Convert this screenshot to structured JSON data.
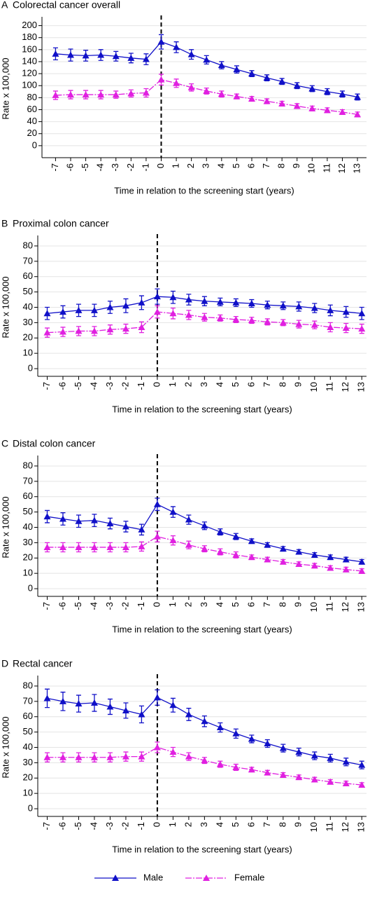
{
  "chart_data": [
    {
      "type": "line",
      "panel": "A",
      "title": "Colorectal cancer overall",
      "x_label": "Time in relation to the screening start (years)",
      "y_label": "Rate x 100,000",
      "x": [
        -7,
        -6,
        -5,
        -4,
        -3,
        -2,
        -1,
        0,
        1,
        2,
        3,
        4,
        5,
        6,
        7,
        8,
        9,
        10,
        11,
        12,
        13
      ],
      "xlim": [
        -7.9,
        13.6
      ],
      "xticks": [
        -7,
        -6,
        -5,
        -4,
        -3,
        -2,
        -1,
        0,
        1,
        2,
        3,
        4,
        5,
        6,
        7,
        8,
        9,
        10,
        11,
        12,
        13
      ],
      "ylim": [
        -20,
        210
      ],
      "yticks": [
        0,
        20,
        40,
        60,
        80,
        100,
        120,
        140,
        160,
        180,
        200
      ],
      "grid": true,
      "reference_x": 0,
      "series": [
        {
          "name": "Male",
          "color": "#1010c8",
          "values": [
            153,
            151,
            150,
            151,
            149,
            146,
            144,
            173,
            164,
            152,
            143,
            134,
            127,
            120,
            113,
            107,
            100,
            95,
            90,
            86,
            81
          ],
          "errors": [
            10,
            10,
            9,
            9,
            8,
            8,
            9,
            12,
            9,
            8,
            7,
            6,
            6,
            5,
            5,
            5,
            5,
            5,
            5,
            5,
            5
          ]
        },
        {
          "name": "Female",
          "color": "#e020e0",
          "values": [
            84,
            85,
            85,
            85,
            85,
            87,
            88,
            110,
            104,
            97,
            91,
            86,
            82,
            78,
            74,
            70,
            66,
            62,
            59,
            56,
            52
          ],
          "errors": [
            7,
            7,
            7,
            7,
            6,
            6,
            7,
            9,
            7,
            6,
            5,
            5,
            4,
            4,
            4,
            4,
            4,
            4,
            4,
            4,
            4
          ]
        }
      ]
    },
    {
      "type": "line",
      "panel": "B",
      "title": "Proximal colon cancer",
      "x_label": "Time in relation to the screening start (years)",
      "y_label": "Rate x 100,000",
      "x": [
        -7,
        -6,
        -5,
        -4,
        -3,
        -2,
        -1,
        0,
        1,
        2,
        3,
        4,
        5,
        6,
        7,
        8,
        9,
        10,
        11,
        12,
        13
      ],
      "xlim": [
        -7.6,
        13.3
      ],
      "xticks": [
        -7,
        -6,
        -5,
        -4,
        -3,
        -2,
        -1,
        0,
        1,
        2,
        3,
        4,
        5,
        6,
        7,
        8,
        9,
        10,
        11,
        12,
        13
      ],
      "ylim": [
        -5,
        85
      ],
      "yticks": [
        0,
        10,
        20,
        30,
        40,
        50,
        60,
        70,
        80
      ],
      "grid": true,
      "reference_x": 0,
      "series": [
        {
          "name": "Male",
          "color": "#1010c8",
          "values": [
            36,
            37,
            38,
            38,
            40,
            41,
            43,
            47,
            46.5,
            45,
            44,
            43.5,
            43,
            42.5,
            41.5,
            41,
            40.5,
            39.5,
            38,
            37,
            36
          ],
          "errors": [
            4,
            4,
            4,
            4,
            4,
            4.5,
            4.5,
            5,
            4,
            3.5,
            3,
            2.5,
            2.5,
            2.5,
            2.5,
            2.5,
            3,
            3,
            3.5,
            3.5,
            4
          ]
        },
        {
          "name": "Female",
          "color": "#e020e0",
          "values": [
            23.5,
            24,
            24.5,
            24.5,
            25.5,
            26,
            27,
            37,
            36,
            35,
            33.5,
            33,
            32,
            31.5,
            30.5,
            30,
            29,
            28.5,
            27,
            26.5,
            26
          ],
          "errors": [
            3,
            3,
            3,
            3,
            3,
            3,
            3.5,
            4,
            3.5,
            3,
            2.5,
            2,
            2,
            2,
            2,
            2,
            2.5,
            2.5,
            3,
            3,
            3
          ]
        }
      ]
    },
    {
      "type": "line",
      "panel": "C",
      "title": "Distal colon cancer",
      "x_label": "Time in relation to the screening start (years)",
      "y_label": "Rate x 100,000",
      "x": [
        -7,
        -6,
        -5,
        -4,
        -3,
        -2,
        -1,
        0,
        1,
        2,
        3,
        4,
        5,
        6,
        7,
        8,
        9,
        10,
        11,
        12,
        13
      ],
      "xlim": [
        -7.6,
        13.3
      ],
      "xticks": [
        -7,
        -6,
        -5,
        -4,
        -3,
        -2,
        -1,
        0,
        1,
        2,
        3,
        4,
        5,
        6,
        7,
        8,
        9,
        10,
        11,
        12,
        13
      ],
      "ylim": [
        -5,
        85
      ],
      "yticks": [
        0,
        10,
        20,
        30,
        40,
        50,
        60,
        70,
        80
      ],
      "grid": true,
      "reference_x": 0,
      "series": [
        {
          "name": "Male",
          "color": "#1010c8",
          "values": [
            47,
            45.5,
            44,
            44.5,
            42.5,
            40.5,
            38.5,
            55,
            50,
            45,
            41,
            37,
            34,
            31,
            28.5,
            26,
            24,
            22,
            20.5,
            19,
            17.5
          ],
          "errors": [
            4,
            4,
            4,
            4,
            3.5,
            3.5,
            3.5,
            4,
            3.5,
            3,
            2.5,
            2,
            2,
            1.5,
            1.5,
            1.5,
            1.5,
            1.5,
            1.5,
            1.5,
            1.5
          ]
        },
        {
          "name": "Female",
          "color": "#e020e0",
          "values": [
            27,
            27,
            27,
            27,
            27,
            27,
            27.5,
            34,
            31.5,
            28.5,
            26,
            24,
            22,
            20.5,
            19,
            17.5,
            16,
            15,
            13.5,
            12.5,
            11.5
          ],
          "errors": [
            3,
            3,
            3,
            3,
            3,
            3,
            3,
            3.5,
            3,
            2.5,
            2,
            2,
            2,
            1.5,
            1.5,
            1.5,
            1.5,
            1.5,
            1.5,
            1.5,
            1.5
          ]
        }
      ]
    },
    {
      "type": "line",
      "panel": "D",
      "title": "Rectal cancer",
      "x_label": "Time in relation to the screening start (years)",
      "y_label": "Rate x 100,000",
      "x": [
        -7,
        -6,
        -5,
        -4,
        -3,
        -2,
        -1,
        0,
        1,
        2,
        3,
        4,
        5,
        6,
        7,
        8,
        9,
        10,
        11,
        12,
        13
      ],
      "xlim": [
        -7.6,
        13.3
      ],
      "xticks": [
        -7,
        -6,
        -5,
        -4,
        -3,
        -2,
        -1,
        0,
        1,
        2,
        3,
        4,
        5,
        6,
        7,
        8,
        9,
        10,
        11,
        12,
        13
      ],
      "ylim": [
        -5,
        85
      ],
      "yticks": [
        0,
        10,
        20,
        30,
        40,
        50,
        60,
        70,
        80
      ],
      "grid": true,
      "reference_x": 0,
      "series": [
        {
          "name": "Male",
          "color": "#1010c8",
          "values": [
            72,
            70,
            68.5,
            69,
            66.5,
            64,
            61.5,
            72.5,
            67.5,
            61.5,
            57,
            53,
            49,
            45.5,
            42.5,
            39.5,
            37,
            34.5,
            33,
            30.5,
            28.5
          ],
          "errors": [
            6,
            6,
            5.5,
            5.5,
            5,
            5,
            5.5,
            5,
            4.5,
            4,
            3.5,
            3,
            3,
            2.5,
            2.5,
            2.5,
            2.5,
            2.5,
            2.5,
            2.5,
            2.5
          ]
        },
        {
          "name": "Female",
          "color": "#e020e0",
          "values": [
            33.5,
            33.5,
            33.5,
            33.5,
            33.5,
            34,
            34,
            40,
            37,
            34,
            31.5,
            29,
            27,
            25.5,
            23.5,
            22,
            20.5,
            19,
            17.5,
            16.5,
            15.5
          ],
          "errors": [
            3,
            3,
            3,
            3,
            3,
            3,
            3,
            3.5,
            3,
            2.5,
            2,
            2,
            2,
            1.5,
            1.5,
            1.5,
            1.5,
            1.5,
            1.5,
            1.5,
            1.5
          ]
        }
      ]
    }
  ]
}
